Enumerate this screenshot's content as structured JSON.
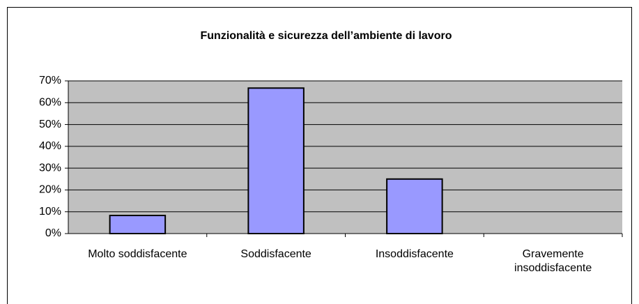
{
  "chart_data": {
    "type": "bar",
    "title": "Funzionalità e sicurezza dell’ambiente di lavoro",
    "categories": [
      "Molto soddisfacente",
      "Soddisfacente",
      "Insoddisfacente",
      "Gravemente insoddisfacente"
    ],
    "values": [
      8.3,
      66.7,
      25,
      0
    ],
    "color": "#9999ff",
    "plot_background": "#c0c0c0",
    "ylim": [
      0,
      70
    ],
    "yticks": [
      {
        "value": 0,
        "label": "0%"
      },
      {
        "value": 10,
        "label": "10%"
      },
      {
        "value": 20,
        "label": "20%"
      },
      {
        "value": 30,
        "label": "30%"
      },
      {
        "value": 40,
        "label": "40%"
      },
      {
        "value": 50,
        "label": "50%"
      },
      {
        "value": 60,
        "label": "60%"
      },
      {
        "value": 70,
        "label": "70%"
      }
    ],
    "grid": true
  }
}
